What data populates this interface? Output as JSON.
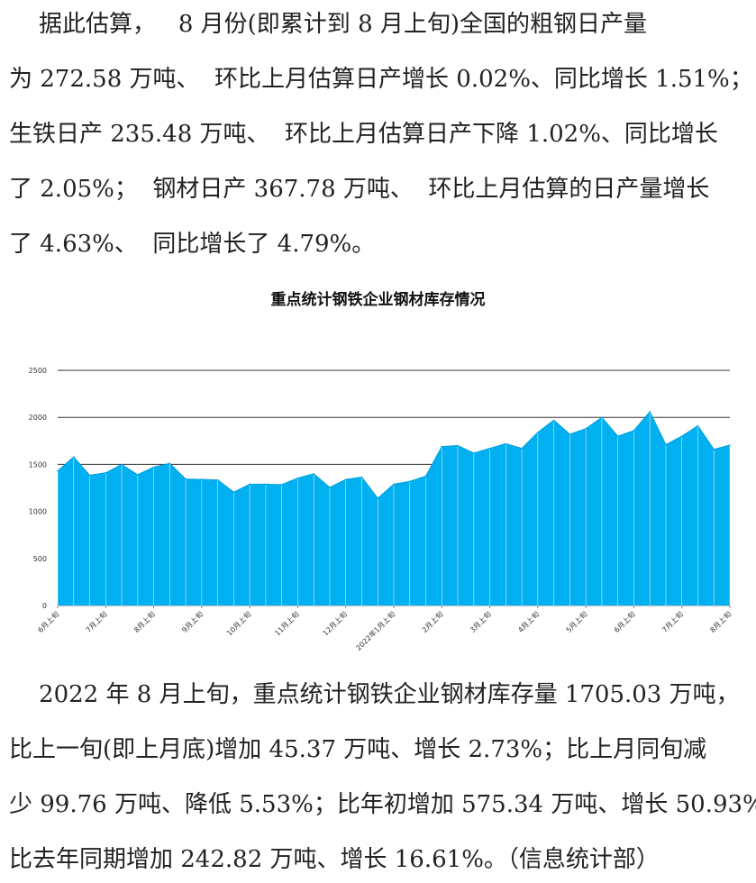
{
  "paragraph1": {
    "lines": [
      "    据此估算，   8 月份(即累计到 8 月上旬)全国的粗钢日产量",
      "为 272.58 万吨、  环比上月估算日产增长 0.02%、同比增长 1.51%；",
      "生铁日产 235.48 万吨、  环比上月估算日产下降 1.02%、同比增长",
      "了 2.05%；  钢材日产 367.78 万吨、  环比上月估算的日产量增长",
      "了 4.63%、  同比增长了 4.79%。"
    ]
  },
  "paragraph2": {
    "lines": [
      "    2022 年 8 月上旬，重点统计钢铁企业钢材库存量 1705.03 万吨，",
      "比上一旬(即上月底)增加 45.37 万吨、增长 2.73%；比上月同旬减",
      "少 99.76 万吨、降低 5.53%；比年初增加 575.34 万吨、增长 50.93%；",
      "比去年同期增加 242.82 万吨、增长 16.61%。（信息统计部）"
    ]
  },
  "chart_data": {
    "type": "area",
    "title": "重点统计钢铁企业钢材库存情况",
    "xlabel": "",
    "ylabel": "",
    "ylim": [
      0,
      2500
    ],
    "yticks": [
      0,
      500,
      1000,
      1500,
      2000,
      2500
    ],
    "grid": true,
    "legend": "none",
    "color": "#00b0f0",
    "x_tick_labels": [
      {
        "index": 0,
        "label": "6月上旬"
      },
      {
        "index": 3,
        "label": "7月上旬"
      },
      {
        "index": 6,
        "label": "8月上旬"
      },
      {
        "index": 9,
        "label": "9月上旬"
      },
      {
        "index": 12,
        "label": "10月上旬"
      },
      {
        "index": 15,
        "label": "11月上旬"
      },
      {
        "index": 18,
        "label": "12月上旬"
      },
      {
        "index": 21,
        "label": "2022年1月上旬"
      },
      {
        "index": 24,
        "label": "2月上旬"
      },
      {
        "index": 27,
        "label": "3月上旬"
      },
      {
        "index": 30,
        "label": "4月上旬"
      },
      {
        "index": 33,
        "label": "5月上旬"
      },
      {
        "index": 36,
        "label": "6月上旬"
      },
      {
        "index": 39,
        "label": "7月上旬"
      },
      {
        "index": 42,
        "label": "8月上旬"
      }
    ],
    "values": [
      1430,
      1580,
      1385,
      1410,
      1500,
      1390,
      1470,
      1510,
      1345,
      1340,
      1335,
      1205,
      1290,
      1290,
      1285,
      1355,
      1400,
      1255,
      1340,
      1365,
      1140,
      1290,
      1320,
      1375,
      1690,
      1700,
      1620,
      1670,
      1720,
      1670,
      1840,
      1970,
      1820,
      1880,
      2000,
      1800,
      1860,
      2060,
      1710,
      1800,
      1910,
      1660,
      1705
    ]
  }
}
